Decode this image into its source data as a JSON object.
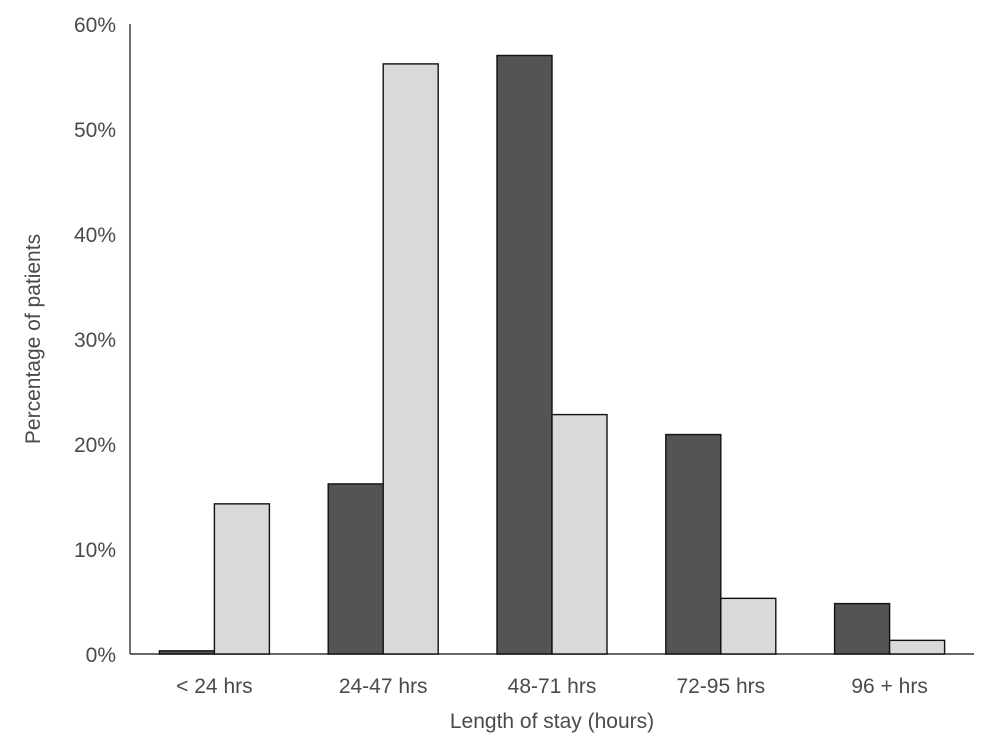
{
  "chart_data": {
    "type": "bar",
    "title": "",
    "xlabel": "Length of stay (hours)",
    "ylabel": "Percentage of patients",
    "categories": [
      "< 24 hrs",
      "24-47 hrs",
      "48-71 hrs",
      "72-95 hrs",
      "96 + hrs"
    ],
    "series": [
      {
        "color": "#545454",
        "values": [
          0.3,
          16.2,
          57.0,
          20.9,
          4.8
        ]
      },
      {
        "color": "#d9d9d9",
        "values": [
          14.3,
          56.2,
          22.8,
          5.3,
          1.3
        ]
      }
    ],
    "ylim": [
      0,
      60
    ],
    "yticks": [
      0,
      10,
      20,
      30,
      40,
      50,
      60
    ],
    "ytick_format": "percent",
    "grid": false,
    "legend": "none"
  }
}
